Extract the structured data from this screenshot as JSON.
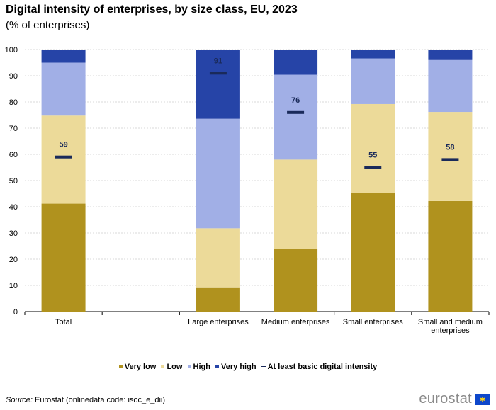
{
  "title": "Digital intensity of enterprises, by size class, EU, 2023",
  "subtitle": "(% of enterprises)",
  "chart_data": {
    "type": "bar",
    "stacked": true,
    "categories": [
      "Total",
      "",
      "Large enterprises",
      "Medium enterprises",
      "Small enterprises",
      "Small and medium enterprises"
    ],
    "category_lines": [
      [
        "Total"
      ],
      [],
      [
        "Large enterprises"
      ],
      [
        "Medium enterprises"
      ],
      [
        "Small enterprises"
      ],
      [
        "Small and medium",
        "enterprises"
      ]
    ],
    "series": [
      {
        "name": "Very low",
        "color": "#b0921e",
        "values": [
          41.2,
          null,
          9.0,
          24.0,
          45.2,
          42.2
        ]
      },
      {
        "name": "Low",
        "color": "#ecda99",
        "values": [
          33.6,
          null,
          22.8,
          34.0,
          34.0,
          34.0
        ]
      },
      {
        "name": "High",
        "color": "#a1afe6",
        "values": [
          20.2,
          null,
          41.8,
          32.4,
          17.4,
          19.8
        ]
      },
      {
        "name": "Very high",
        "color": "#2644a7",
        "values": [
          5.0,
          null,
          26.4,
          9.6,
          3.4,
          4.0
        ]
      }
    ],
    "marker_series": {
      "name": "At least basic digital intensity",
      "color": "#1a2a5a",
      "values": [
        59,
        null,
        91,
        76,
        55,
        58
      ]
    },
    "ylim": [
      0,
      100
    ],
    "yticks": [
      0,
      10,
      20,
      30,
      40,
      50,
      60,
      70,
      80,
      90,
      100
    ],
    "grid": true,
    "legend_position": "bottom"
  },
  "legend": [
    {
      "label": "Very low",
      "color": "#b0921e"
    },
    {
      "label": "Low",
      "color": "#ecda99"
    },
    {
      "label": "High",
      "color": "#a1afe6"
    },
    {
      "label": "Very high",
      "color": "#2644a7"
    },
    {
      "label": "At least basic digital intensity",
      "color": "#1a2a5a"
    }
  ],
  "source": {
    "label": "Source:",
    "text": " Eurostat (onlinedata code: isoc_e_dii)"
  },
  "brand": "eurostat"
}
